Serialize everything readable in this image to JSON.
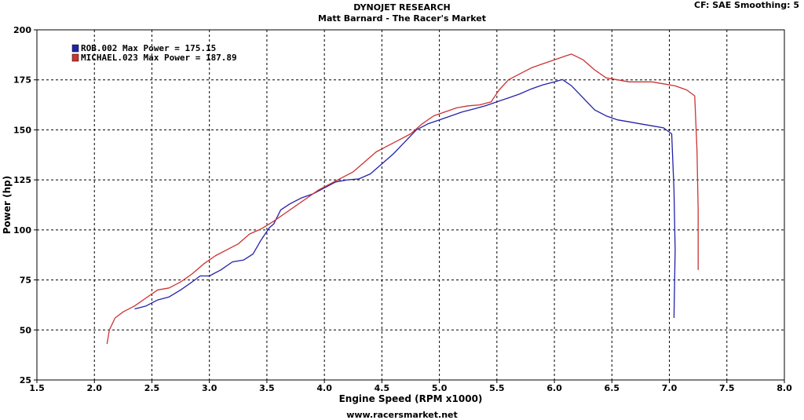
{
  "header": {
    "title": "DYNOJET RESEARCH",
    "subtitle": "Matt Barnard - The Racer's Market",
    "settings": "CF: SAE  Smoothing: 5"
  },
  "footer": {
    "url": "www.racersmarket.net"
  },
  "chart_data": {
    "type": "line",
    "xlabel": "Engine Speed (RPM x1000)",
    "ylabel": "Power (hp)",
    "xlim": [
      1.5,
      8.0
    ],
    "ylim": [
      25,
      200
    ],
    "xticks": [
      "1.5",
      "2.0",
      "2.5",
      "3.0",
      "3.5",
      "4.0",
      "4.5",
      "5.0",
      "5.5",
      "6.0",
      "6.5",
      "7.0",
      "7.5",
      "8.0"
    ],
    "yticks": [
      "25",
      "50",
      "75",
      "100",
      "125",
      "150",
      "175",
      "200"
    ],
    "grid": true,
    "legend_position": "top-left",
    "series": [
      {
        "name": "ROB.002 Max Power = 175.15",
        "color": "#2222aa",
        "points": [
          [
            2.35,
            60.5
          ],
          [
            2.45,
            62
          ],
          [
            2.55,
            65
          ],
          [
            2.65,
            66.5
          ],
          [
            2.75,
            70
          ],
          [
            2.85,
            74
          ],
          [
            2.92,
            77
          ],
          [
            3.0,
            77
          ],
          [
            3.1,
            80
          ],
          [
            3.2,
            84
          ],
          [
            3.3,
            85
          ],
          [
            3.38,
            88
          ],
          [
            3.45,
            95
          ],
          [
            3.52,
            101
          ],
          [
            3.56,
            103
          ],
          [
            3.62,
            110
          ],
          [
            3.7,
            113
          ],
          [
            3.8,
            116
          ],
          [
            3.9,
            118
          ],
          [
            4.0,
            121
          ],
          [
            4.1,
            124
          ],
          [
            4.2,
            125
          ],
          [
            4.3,
            125.5
          ],
          [
            4.4,
            128
          ],
          [
            4.5,
            133
          ],
          [
            4.6,
            138
          ],
          [
            4.7,
            144
          ],
          [
            4.8,
            150
          ],
          [
            4.9,
            153
          ],
          [
            5.0,
            155
          ],
          [
            5.1,
            157
          ],
          [
            5.2,
            159
          ],
          [
            5.3,
            160.5
          ],
          [
            5.4,
            162
          ],
          [
            5.5,
            164
          ],
          [
            5.6,
            166
          ],
          [
            5.7,
            168
          ],
          [
            5.8,
            170.5
          ],
          [
            5.9,
            172.5
          ],
          [
            6.0,
            174
          ],
          [
            6.07,
            175.15
          ],
          [
            6.15,
            172
          ],
          [
            6.25,
            166
          ],
          [
            6.35,
            160
          ],
          [
            6.45,
            157
          ],
          [
            6.55,
            155
          ],
          [
            6.65,
            154
          ],
          [
            6.75,
            153
          ],
          [
            6.85,
            152
          ],
          [
            6.95,
            151
          ],
          [
            7.02,
            148
          ],
          [
            7.04,
            120
          ],
          [
            7.05,
            90
          ],
          [
            7.04,
            56
          ]
        ]
      },
      {
        "name": "MICHAEL.023 Max Power = 187.89",
        "color": "#cc3333",
        "points": [
          [
            2.11,
            43
          ],
          [
            2.13,
            50
          ],
          [
            2.18,
            56
          ],
          [
            2.25,
            59
          ],
          [
            2.35,
            62
          ],
          [
            2.45,
            66
          ],
          [
            2.55,
            70
          ],
          [
            2.65,
            71
          ],
          [
            2.75,
            74
          ],
          [
            2.85,
            78
          ],
          [
            2.95,
            83
          ],
          [
            3.05,
            87
          ],
          [
            3.15,
            90
          ],
          [
            3.25,
            93
          ],
          [
            3.35,
            98
          ],
          [
            3.45,
            100.5
          ],
          [
            3.55,
            104
          ],
          [
            3.65,
            108
          ],
          [
            3.75,
            112
          ],
          [
            3.85,
            116
          ],
          [
            3.95,
            120
          ],
          [
            4.05,
            123
          ],
          [
            4.15,
            126
          ],
          [
            4.25,
            129
          ],
          [
            4.35,
            134
          ],
          [
            4.45,
            139
          ],
          [
            4.55,
            142
          ],
          [
            4.65,
            145
          ],
          [
            4.75,
            148
          ],
          [
            4.85,
            153
          ],
          [
            4.95,
            157
          ],
          [
            5.05,
            159
          ],
          [
            5.15,
            161
          ],
          [
            5.25,
            162
          ],
          [
            5.35,
            162.5
          ],
          [
            5.45,
            164
          ],
          [
            5.52,
            170
          ],
          [
            5.6,
            175
          ],
          [
            5.7,
            178
          ],
          [
            5.8,
            181
          ],
          [
            5.9,
            183
          ],
          [
            6.0,
            185
          ],
          [
            6.1,
            187
          ],
          [
            6.15,
            187.89
          ],
          [
            6.25,
            185
          ],
          [
            6.35,
            180
          ],
          [
            6.45,
            176
          ],
          [
            6.55,
            175
          ],
          [
            6.65,
            174
          ],
          [
            6.75,
            174
          ],
          [
            6.85,
            174
          ],
          [
            6.95,
            173
          ],
          [
            7.05,
            172
          ],
          [
            7.15,
            170
          ],
          [
            7.22,
            167
          ],
          [
            7.24,
            140
          ],
          [
            7.25,
            110
          ],
          [
            7.25,
            80
          ]
        ]
      }
    ]
  }
}
